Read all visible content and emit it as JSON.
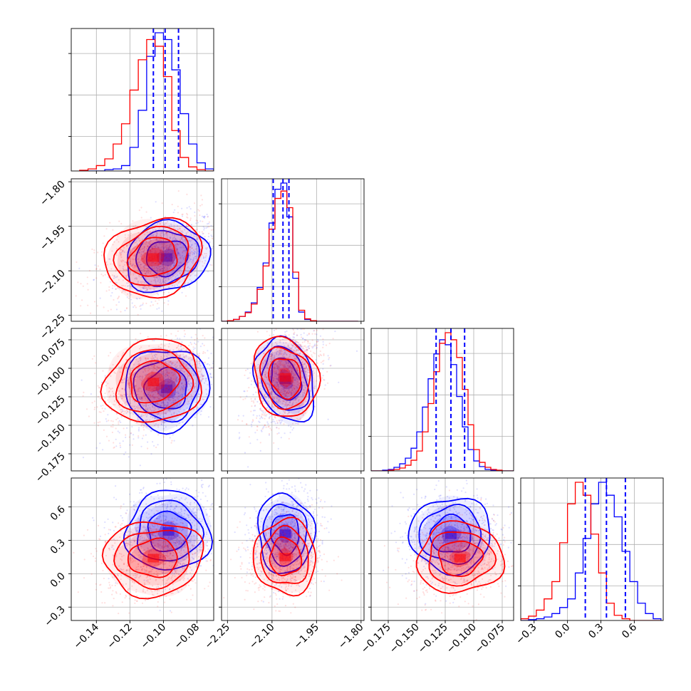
{
  "chart_data": {
    "type": "corner",
    "title": "",
    "grid": true,
    "series": [
      {
        "name": "",
        "color": "#0000ff"
      },
      {
        "name": "",
        "color": "#ff0000"
      }
    ],
    "parameters": [
      {
        "range": [
          -0.155,
          -0.07
        ],
        "ticks": [
          "−0.14",
          "−0.12",
          "−0.10",
          "−0.08"
        ],
        "tick_values": [
          -0.14,
          -0.12,
          -0.1,
          -0.08
        ]
      },
      {
        "range": [
          -2.27,
          -1.79
        ],
        "ticks": [
          "−2.25",
          "−2.10",
          "−1.95",
          "−1.80"
        ],
        "tick_values": [
          -2.25,
          -2.1,
          -1.95,
          -1.8
        ]
      },
      {
        "range": [
          -0.19,
          -0.065
        ],
        "ticks": [
          "−0.175",
          "−0.150",
          "−0.125",
          "−0.100",
          "−0.075"
        ],
        "tick_values": [
          -0.175,
          -0.15,
          -0.125,
          -0.1,
          -0.075
        ]
      },
      {
        "range": [
          -0.42,
          0.86
        ],
        "ticks": [
          "−0.3",
          "0.0",
          "0.3",
          "0.6"
        ],
        "tick_values": [
          -0.3,
          0.0,
          0.3,
          0.6
        ]
      }
    ],
    "histograms": [
      {
        "bins": [
          -0.15,
          -0.145,
          -0.14,
          -0.135,
          -0.13,
          -0.125,
          -0.12,
          -0.115,
          -0.11,
          -0.105,
          -0.1,
          -0.095,
          -0.09,
          -0.085,
          -0.08,
          -0.075,
          -0.07
        ],
        "blue": [
          0,
          0,
          0,
          2,
          3,
          8,
          35,
          90,
          170,
          205,
          195,
          150,
          85,
          40,
          12,
          3
        ],
        "red": [
          1,
          3,
          8,
          18,
          40,
          70,
          120,
          165,
          195,
          185,
          140,
          60,
          20,
          6,
          2,
          0
        ],
        "quantiles": [
          -0.106,
          -0.099,
          -0.091
        ]
      },
      {
        "bins": [
          -2.27,
          -2.25,
          -2.23,
          -2.21,
          -2.19,
          -2.17,
          -2.15,
          -2.13,
          -2.11,
          -2.09,
          -2.07,
          -2.05,
          -2.03,
          -2.01,
          -1.99,
          -1.97,
          -1.95,
          -1.93,
          -1.91,
          -1.89,
          -1.87,
          -1.85,
          -1.83,
          -1.81
        ],
        "blue": [
          0,
          1,
          3,
          8,
          15,
          30,
          55,
          95,
          160,
          215,
          225,
          170,
          70,
          15,
          3,
          1,
          0,
          0,
          0,
          0,
          0,
          0,
          0
        ],
        "red": [
          0,
          1,
          3,
          8,
          14,
          28,
          52,
          90,
          150,
          200,
          212,
          185,
          80,
          18,
          4,
          1,
          0,
          0,
          0,
          0,
          0,
          0,
          0
        ],
        "quantiles": [
          -2.096,
          -2.063,
          -2.043
        ]
      },
      {
        "bins": [
          -0.19,
          -0.185,
          -0.18,
          -0.175,
          -0.17,
          -0.165,
          -0.16,
          -0.155,
          -0.15,
          -0.145,
          -0.14,
          -0.135,
          -0.13,
          -0.125,
          -0.12,
          -0.115,
          -0.11,
          -0.105,
          -0.1,
          -0.095,
          -0.09,
          -0.085,
          -0.08,
          -0.075,
          -0.07,
          -0.065
        ],
        "blue": [
          0,
          0,
          1,
          2,
          5,
          10,
          18,
          32,
          55,
          90,
          130,
          165,
          185,
          178,
          150,
          105,
          62,
          30,
          14,
          6,
          2,
          1,
          0,
          0,
          0
        ],
        "red": [
          0,
          0,
          0,
          1,
          2,
          4,
          8,
          15,
          28,
          55,
          95,
          140,
          180,
          195,
          185,
          160,
          115,
          65,
          30,
          12,
          5,
          2,
          1,
          0,
          0
        ],
        "quantiles": [
          -0.133,
          -0.12,
          -0.108
        ]
      },
      {
        "bins": [
          -0.42,
          -0.35,
          -0.28,
          -0.21,
          -0.14,
          -0.07,
          0.0,
          0.07,
          0.14,
          0.21,
          0.28,
          0.35,
          0.42,
          0.49,
          0.56,
          0.63,
          0.7,
          0.77,
          0.84
        ],
        "blue": [
          0,
          1,
          2,
          4,
          8,
          15,
          25,
          55,
          95,
          135,
          160,
          145,
          120,
          80,
          45,
          20,
          8,
          2
        ],
        "red": [
          2,
          5,
          12,
          25,
          45,
          90,
          135,
          160,
          145,
          100,
          55,
          20,
          6,
          2,
          0,
          0,
          0,
          0
        ],
        "quantiles": [
          0.16,
          0.35,
          0.52
        ]
      }
    ],
    "scatter_2d": [
      {
        "x_param": 0,
        "y_param": 1,
        "blue_center": [
          -0.098,
          -2.055
        ],
        "red_center": [
          -0.106,
          -2.055
        ],
        "blue_sd": [
          0.012,
          0.055
        ],
        "red_sd": [
          0.014,
          0.06
        ]
      },
      {
        "x_param": 0,
        "y_param": 2,
        "blue_center": [
          -0.098,
          -0.118
        ],
        "red_center": [
          -0.106,
          -0.112
        ],
        "blue_sd": [
          0.012,
          0.017
        ],
        "red_sd": [
          0.014,
          0.017
        ]
      },
      {
        "x_param": 1,
        "y_param": 2,
        "blue_center": [
          -2.055,
          -0.11
        ],
        "red_center": [
          -2.055,
          -0.108
        ],
        "blue_sd": [
          0.045,
          0.018
        ],
        "red_sd": [
          0.05,
          0.017
        ]
      },
      {
        "x_param": 0,
        "y_param": 3,
        "blue_center": [
          -0.097,
          0.38
        ],
        "red_center": [
          -0.106,
          0.14
        ],
        "blue_sd": [
          0.012,
          0.17
        ],
        "red_sd": [
          0.014,
          0.16
        ]
      },
      {
        "x_param": 1,
        "y_param": 3,
        "blue_center": [
          -2.055,
          0.36
        ],
        "red_center": [
          -2.055,
          0.15
        ],
        "blue_sd": [
          0.045,
          0.17
        ],
        "red_sd": [
          0.05,
          0.16
        ]
      },
      {
        "x_param": 2,
        "y_param": 3,
        "blue_center": [
          -0.12,
          0.35
        ],
        "red_center": [
          -0.112,
          0.14
        ],
        "blue_sd": [
          0.017,
          0.16
        ],
        "red_sd": [
          0.018,
          0.15
        ]
      }
    ]
  }
}
